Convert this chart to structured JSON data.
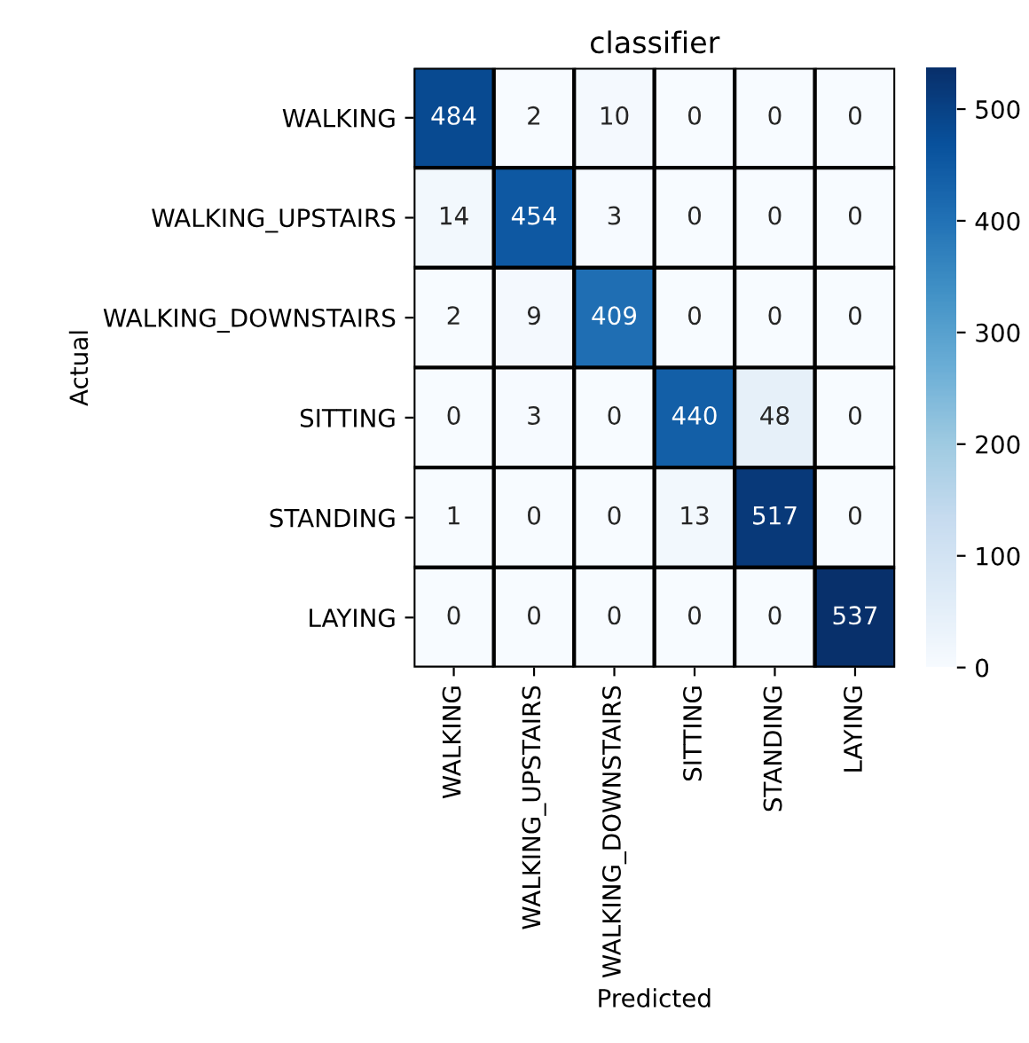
{
  "chart_data": {
    "type": "heatmap",
    "title": "classifier",
    "xlabel": "Predicted",
    "ylabel": "Actual",
    "categories": [
      "WALKING",
      "WALKING_UPSTAIRS",
      "WALKING_DOWNSTAIRS",
      "SITTING",
      "STANDING",
      "LAYING"
    ],
    "y_categories": [
      "WALKING",
      "WALKING_UPSTAIRS",
      "WALKING_DOWNSTAIRS",
      "SITTING",
      "STANDING",
      "LAYING"
    ],
    "cells": [
      [
        484,
        2,
        10,
        0,
        0,
        0
      ],
      [
        14,
        454,
        3,
        0,
        0,
        0
      ],
      [
        2,
        9,
        409,
        0,
        0,
        0
      ],
      [
        0,
        3,
        0,
        440,
        48,
        0
      ],
      [
        1,
        0,
        0,
        13,
        517,
        0
      ],
      [
        0,
        0,
        0,
        0,
        0,
        537
      ]
    ],
    "data_labels": true,
    "clim": [
      0,
      537
    ],
    "cticks": [
      0,
      100,
      200,
      300,
      400,
      500
    ]
  }
}
